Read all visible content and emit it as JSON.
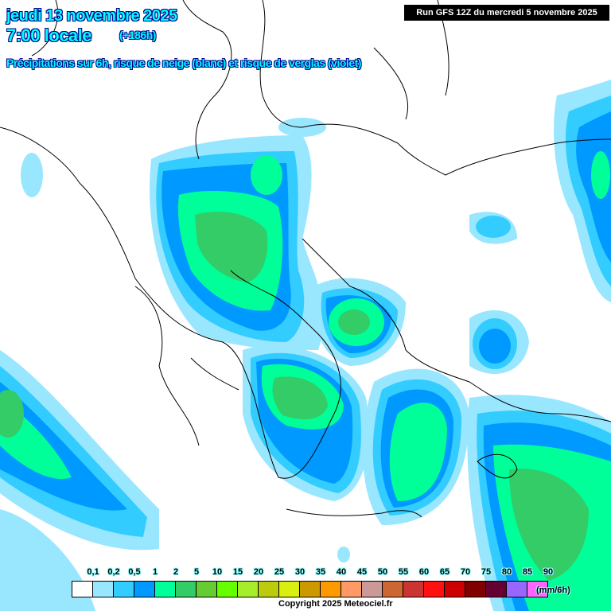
{
  "header": {
    "date": "jeudi 13 novembre 2025",
    "time": "7:00 locale",
    "lead": "(+186h)",
    "subtitle": "Précipitations sur 6h, risque de neige (blanc) et risque de verglas (violet)",
    "run": "Run GFS 12Z du mercredi 5 novembre 2025"
  },
  "legend": {
    "labels": [
      "0,1",
      "0,2",
      "0,5",
      "1",
      "2",
      "5",
      "10",
      "15",
      "20",
      "25",
      "30",
      "35",
      "40",
      "45",
      "50",
      "55",
      "60",
      "65",
      "70",
      "75",
      "80",
      "85",
      "90"
    ],
    "colors": [
      "#ffffff",
      "#99e6ff",
      "#33ccff",
      "#0099ff",
      "#00ff99",
      "#33cc66",
      "#66cc33",
      "#66ff00",
      "#a6ee2c",
      "#bccc0c",
      "#d8f00f",
      "#cc9900",
      "#ff9900",
      "#ff9966",
      "#cc9999",
      "#cc6633",
      "#cc3333",
      "#ff1111",
      "#cc0000",
      "#800000",
      "#660033",
      "#9966ff",
      "#ff66ff"
    ],
    "unit": "(mm/6h)"
  },
  "copyright": "Copyright 2025 Meteociel.fr"
}
